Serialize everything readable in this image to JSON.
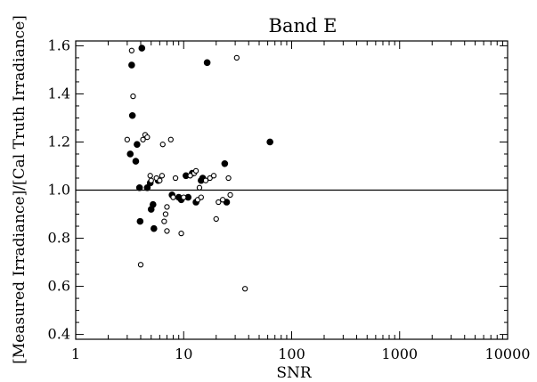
{
  "chart_data": {
    "type": "scatter",
    "title": "Band E",
    "xlabel": "SNR",
    "ylabel": "[Measured Irradiance]/[Cal Truth Irradiance]",
    "x_scale": "log",
    "xlim": [
      1,
      10000
    ],
    "ylim": [
      0.38,
      1.62
    ],
    "x_ticks": [
      1,
      10,
      100,
      1000,
      10000
    ],
    "x_tick_labels": [
      "1",
      "10",
      "100",
      "1000",
      "10000"
    ],
    "y_ticks": [
      0.4,
      0.6,
      0.8,
      1.0,
      1.2,
      1.4,
      1.6
    ],
    "y_tick_labels": [
      "0.4",
      "0.6",
      "0.8",
      "1.0",
      "1.2",
      "1.4",
      "1.6"
    ],
    "reference_line": 1.0,
    "grid": false,
    "legend": "none",
    "colors": {
      "ink": "#000000",
      "background": "#ffffff"
    },
    "series": [
      {
        "marker": "filled-circle",
        "points": [
          [
            3.2,
            1.15
          ],
          [
            3.3,
            1.52
          ],
          [
            3.35,
            1.31
          ],
          [
            3.6,
            1.12
          ],
          [
            3.7,
            1.19
          ],
          [
            3.9,
            1.01
          ],
          [
            3.95,
            0.87
          ],
          [
            4.1,
            1.59
          ],
          [
            4.6,
            1.01
          ],
          [
            4.9,
            1.03
          ],
          [
            5.0,
            0.92
          ],
          [
            5.2,
            0.94
          ],
          [
            5.3,
            0.84
          ],
          [
            5.8,
            1.04
          ],
          [
            7.8,
            0.98
          ],
          [
            9.0,
            0.97
          ],
          [
            9.5,
            0.96
          ],
          [
            10.5,
            1.06
          ],
          [
            11.0,
            0.97
          ],
          [
            12.0,
            1.07
          ],
          [
            13.0,
            0.95
          ],
          [
            14.5,
            1.04
          ],
          [
            15.0,
            1.05
          ],
          [
            16.5,
            1.53
          ],
          [
            24.0,
            1.11
          ],
          [
            25.0,
            0.95
          ],
          [
            63.0,
            1.2
          ]
        ]
      },
      {
        "marker": "open-circle",
        "points": [
          [
            3.0,
            1.21
          ],
          [
            3.3,
            1.58
          ],
          [
            3.4,
            1.39
          ],
          [
            4.0,
            0.69
          ],
          [
            4.2,
            1.21
          ],
          [
            4.4,
            1.23
          ],
          [
            4.6,
            1.22
          ],
          [
            4.9,
            1.06
          ],
          [
            5.0,
            1.04
          ],
          [
            5.6,
            1.05
          ],
          [
            6.0,
            1.04
          ],
          [
            6.3,
            1.06
          ],
          [
            6.4,
            1.19
          ],
          [
            6.6,
            0.87
          ],
          [
            6.8,
            0.9
          ],
          [
            7.0,
            0.93
          ],
          [
            7.0,
            0.83
          ],
          [
            7.6,
            1.21
          ],
          [
            8.0,
            0.97
          ],
          [
            8.4,
            1.05
          ],
          [
            9.5,
            0.82
          ],
          [
            10.0,
            0.97
          ],
          [
            11.5,
            1.06
          ],
          [
            12.5,
            1.07
          ],
          [
            13.0,
            1.08
          ],
          [
            13.5,
            0.96
          ],
          [
            14.0,
            1.01
          ],
          [
            14.5,
            0.97
          ],
          [
            16.0,
            1.04
          ],
          [
            17.5,
            1.05
          ],
          [
            19.0,
            1.06
          ],
          [
            20.0,
            0.88
          ],
          [
            21.0,
            0.95
          ],
          [
            23.0,
            0.96
          ],
          [
            26.0,
            1.05
          ],
          [
            27.0,
            0.98
          ],
          [
            31.0,
            1.55
          ],
          [
            37.0,
            0.59
          ]
        ]
      }
    ]
  }
}
